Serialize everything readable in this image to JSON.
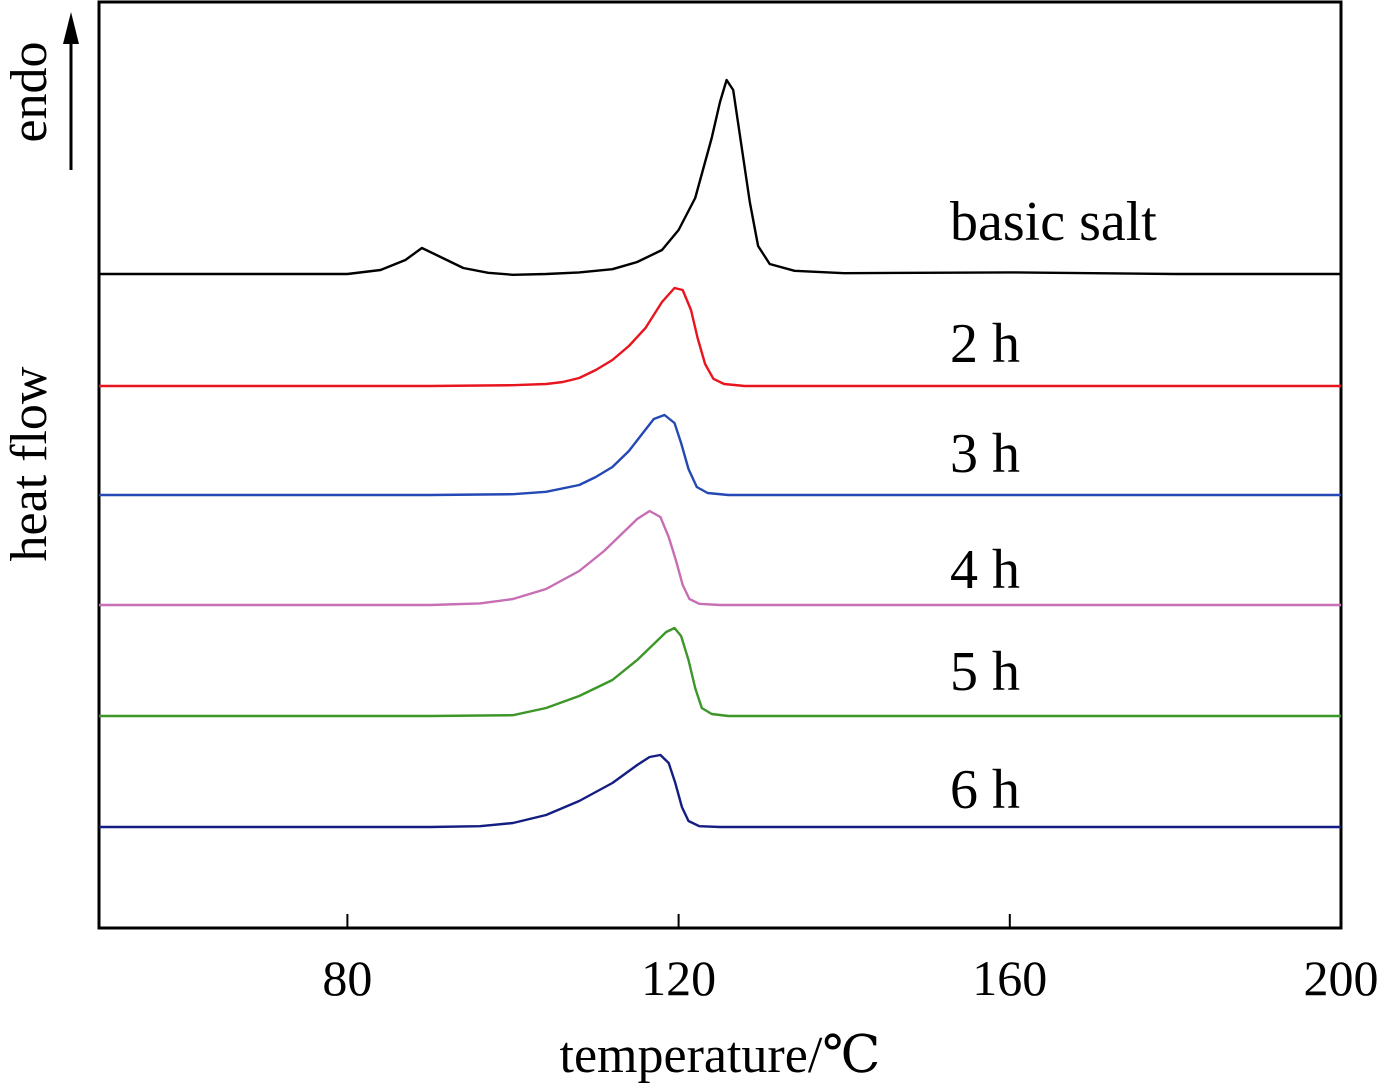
{
  "chart_data": {
    "type": "line",
    "title": "",
    "xlabel": "temperature/℃",
    "ylabel": "heat flow",
    "endo_label": "endo",
    "xlim": [
      50,
      200
    ],
    "xticks": [
      80,
      120,
      160,
      200
    ],
    "yticks": [],
    "grid": false,
    "legend": "inline labels right of curves",
    "series": [
      {
        "name": "basic salt",
        "color": "#000000",
        "baseline": 0.0,
        "x": [
          50,
          60,
          70,
          80,
          84,
          87,
          89,
          91,
          94,
          97,
          100,
          104,
          108,
          112,
          115,
          118,
          120,
          122,
          124,
          125,
          125.8,
          126.6,
          127.6,
          128.6,
          129.6,
          131,
          134,
          140,
          160,
          180,
          200
        ],
        "y": [
          0.0,
          0.0,
          0.0,
          0.0,
          0.1,
          0.35,
          0.65,
          0.45,
          0.15,
          0.03,
          -0.02,
          0.0,
          0.04,
          0.12,
          0.3,
          0.6,
          1.1,
          1.9,
          3.4,
          4.3,
          4.85,
          4.6,
          3.2,
          1.8,
          0.7,
          0.25,
          0.08,
          0.02,
          0.04,
          0.0,
          0.0
        ]
      },
      {
        "name": "2 h",
        "color": "#e8141e",
        "baseline": 0.0,
        "x": [
          50,
          70,
          90,
          100,
          104,
          106,
          108,
          110,
          112,
          114,
          116,
          118,
          119.5,
          120.5,
          121.5,
          122.3,
          123.2,
          124.2,
          125.5,
          128,
          140,
          160,
          200
        ],
        "y": [
          0.0,
          0.0,
          0.0,
          0.02,
          0.05,
          0.1,
          0.2,
          0.4,
          0.65,
          1.0,
          1.45,
          2.1,
          2.45,
          2.4,
          1.9,
          1.2,
          0.55,
          0.18,
          0.05,
          0.0,
          0.0,
          0.0,
          0.0
        ]
      },
      {
        "name": "3 h",
        "color": "#2448b4",
        "baseline": 0.0,
        "x": [
          50,
          70,
          90,
          100,
          104,
          108,
          110,
          112,
          114,
          115.5,
          117,
          118.3,
          119.5,
          120.3,
          121.2,
          122.2,
          123.5,
          126,
          140,
          160,
          200
        ],
        "y": [
          0.0,
          0.0,
          0.0,
          0.02,
          0.08,
          0.25,
          0.45,
          0.7,
          1.1,
          1.5,
          1.9,
          2.0,
          1.8,
          1.3,
          0.65,
          0.2,
          0.05,
          0.0,
          0.0,
          0.0,
          0.0
        ]
      },
      {
        "name": "4 h",
        "color": "#c86eb4",
        "baseline": 0.0,
        "x": [
          50,
          70,
          90,
          96,
          100,
          104,
          108,
          111,
          113,
          115,
          116.5,
          117.8,
          118.8,
          119.7,
          120.5,
          121.3,
          122.5,
          125,
          140,
          160,
          200
        ],
        "y": [
          0.0,
          0.0,
          0.0,
          0.04,
          0.15,
          0.4,
          0.85,
          1.35,
          1.75,
          2.15,
          2.35,
          2.2,
          1.7,
          1.1,
          0.5,
          0.15,
          0.03,
          0.0,
          0.0,
          0.0,
          0.0
        ]
      },
      {
        "name": "5 h",
        "color": "#3c9628",
        "baseline": 0.0,
        "x": [
          50,
          70,
          90,
          100,
          104,
          108,
          112,
          115,
          117,
          118.5,
          119.5,
          120.3,
          121.2,
          122,
          122.8,
          124,
          126,
          140,
          160,
          200
        ],
        "y": [
          0.0,
          0.0,
          0.0,
          0.02,
          0.2,
          0.5,
          0.9,
          1.4,
          1.8,
          2.1,
          2.2,
          2.0,
          1.4,
          0.7,
          0.2,
          0.05,
          0.0,
          0.0,
          0.0,
          0.0
        ]
      },
      {
        "name": "6 h",
        "color": "#141e82",
        "baseline": 0.0,
        "x": [
          50,
          70,
          90,
          96,
          100,
          104,
          108,
          112,
          115,
          116.5,
          117.8,
          118.8,
          119.6,
          120.4,
          121.2,
          122.5,
          125,
          140,
          160,
          200
        ],
        "y": [
          0.0,
          0.0,
          0.0,
          0.02,
          0.1,
          0.3,
          0.65,
          1.1,
          1.55,
          1.75,
          1.8,
          1.6,
          1.1,
          0.5,
          0.15,
          0.02,
          0.0,
          0.0,
          0.0,
          0.0
        ]
      }
    ]
  }
}
